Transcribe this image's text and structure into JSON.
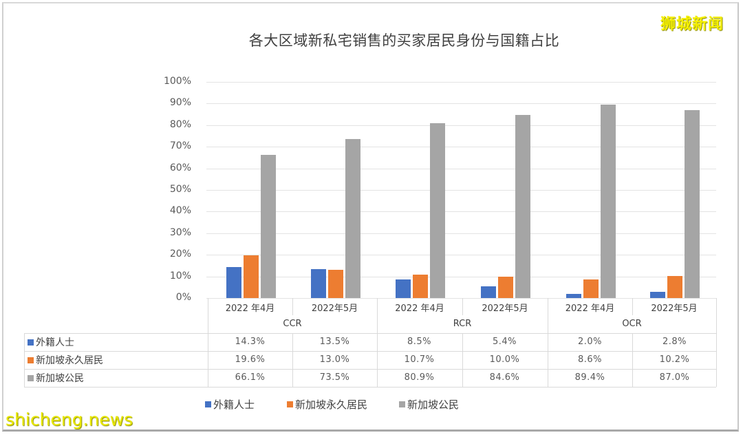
{
  "title": "各大区域新私宅销售的买家居民身份与国籍占比",
  "watermarks": {
    "top_right": "狮城新闻",
    "bottom_left": "shicheng.news"
  },
  "colors": {
    "foreign": "#4472c4",
    "pr": "#ed7d31",
    "citizen": "#a5a5a5",
    "watermark": "#f5f000"
  },
  "y_axis": {
    "ticks": [
      "100%",
      "90%",
      "80%",
      "70%",
      "60%",
      "50%",
      "40%",
      "30%",
      "20%",
      "10%",
      "0%"
    ]
  },
  "categories": {
    "months": [
      "2022 年4月",
      "2022年5月",
      "2022 年4月",
      "2022年5月",
      "2022 年4月",
      "2022年5月"
    ],
    "regions": [
      "CCR",
      "RCR",
      "OCR"
    ]
  },
  "table": {
    "rows": [
      {
        "label": "外籍人士",
        "values": [
          "14.3%",
          "13.5%",
          "8.5%",
          "5.4%",
          "2.0%",
          "2.8%"
        ]
      },
      {
        "label": "新加坡永久居民",
        "values": [
          "19.6%",
          "13.0%",
          "10.7%",
          "10.0%",
          "8.6%",
          "10.2%"
        ]
      },
      {
        "label": "新加坡公民",
        "values": [
          "66.1%",
          "73.5%",
          "80.9%",
          "84.6%",
          "89.4%",
          "87.0%"
        ]
      }
    ]
  },
  "legend": [
    "外籍人士",
    "新加坡永久居民",
    "新加坡公民"
  ],
  "chart_data": {
    "type": "bar",
    "title": "各大区域新私宅销售的买家居民身份与国籍占比",
    "categories": [
      "CCR 2022年4月",
      "CCR 2022年5月",
      "RCR 2022年4月",
      "RCR 2022年5月",
      "OCR 2022年4月",
      "OCR 2022年5月"
    ],
    "category_groups": [
      "CCR",
      "RCR",
      "OCR"
    ],
    "series": [
      {
        "name": "外籍人士",
        "color": "#4472c4",
        "values": [
          14.3,
          13.5,
          8.5,
          5.4,
          2.0,
          2.8
        ]
      },
      {
        "name": "新加坡永久居民",
        "color": "#ed7d31",
        "values": [
          19.6,
          13.0,
          10.7,
          10.0,
          8.6,
          10.2
        ]
      },
      {
        "name": "新加坡公民",
        "color": "#a5a5a5",
        "values": [
          66.1,
          73.5,
          80.9,
          84.6,
          89.4,
          87.0
        ]
      }
    ],
    "xlabel": "",
    "ylabel": "",
    "ylim": [
      0,
      100
    ],
    "y_tick_format": "percent",
    "grid": true,
    "legend_position": "bottom",
    "data_table": true
  }
}
